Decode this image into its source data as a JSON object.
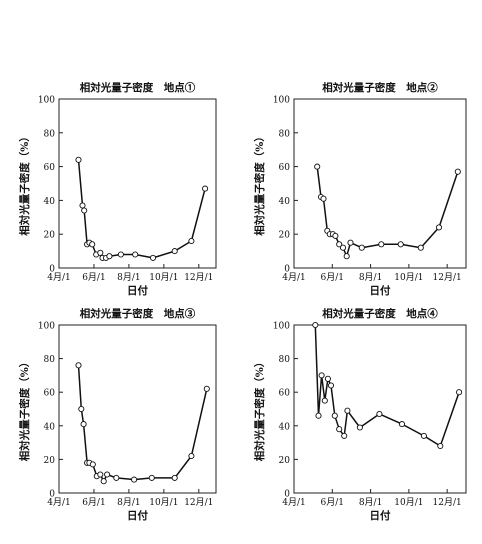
{
  "chart_data": [
    {
      "type": "line",
      "title": "相対光量子密度　地点①",
      "xlabel": "日付",
      "ylabel": "相対光量子密度（%）",
      "ylim": [
        0,
        100
      ],
      "yticks": [
        "0",
        "20",
        "40",
        "60",
        "80",
        "100"
      ],
      "xticks": [
        "4月/1",
        "6月/1",
        "8月/1",
        "10月/1",
        "12月/1"
      ],
      "xlim": [
        "04-01",
        "12-31"
      ],
      "marker": "open-circle",
      "series": [
        {
          "x": [
            "05-05",
            "05-12",
            "05-15",
            "05-20",
            "05-24",
            "05-29",
            "06-05",
            "06-12",
            "06-16",
            "06-22",
            "06-28",
            "07-18",
            "08-12",
            "09-12",
            "10-20",
            "11-18",
            "12-12"
          ],
          "y": [
            64,
            37,
            34,
            14,
            15,
            14,
            8,
            9,
            6,
            6,
            7,
            8,
            8,
            6,
            10,
            16,
            47
          ]
        }
      ]
    },
    {
      "type": "line",
      "title": "相対光量子密度　地点②",
      "xlabel": "日付",
      "ylabel": "相対光量子密度（%）",
      "ylim": [
        0,
        100
      ],
      "yticks": [
        "0",
        "20",
        "40",
        "60",
        "80",
        "100"
      ],
      "xticks": [
        "4月/1",
        "6月/1",
        "8月/1",
        "10月/1",
        "12月/1"
      ],
      "xlim": [
        "04-01",
        "12-31"
      ],
      "marker": "open-circle",
      "series": [
        {
          "x": [
            "05-08",
            "05-14",
            "05-18",
            "05-24",
            "05-28",
            "06-02",
            "06-06",
            "06-12",
            "06-18",
            "06-24",
            "06-30",
            "07-18",
            "08-18",
            "09-18",
            "10-20",
            "11-18",
            "12-18"
          ],
          "y": [
            60,
            42,
            41,
            22,
            20,
            20,
            19,
            14,
            12,
            7,
            15,
            12,
            14,
            14,
            12,
            24,
            57
          ]
        }
      ]
    },
    {
      "type": "line",
      "title": "相対光量子密度　地点③",
      "xlabel": "日付",
      "ylabel": "相対光量子密度（%）",
      "ylim": [
        0,
        100
      ],
      "yticks": [
        "0",
        "20",
        "40",
        "60",
        "80",
        "100"
      ],
      "xticks": [
        "4月/1",
        "6月/1",
        "8月/1",
        "10月/1",
        "12月/1"
      ],
      "xlim": [
        "04-01",
        "12-31"
      ],
      "marker": "open-circle",
      "series": [
        {
          "x": [
            "05-05",
            "05-10",
            "05-14",
            "05-20",
            "05-24",
            "05-30",
            "06-06",
            "06-12",
            "06-18",
            "06-24",
            "07-10",
            "08-10",
            "09-10",
            "10-20",
            "11-18",
            "12-15"
          ],
          "y": [
            76,
            50,
            41,
            18,
            18,
            17,
            10,
            11,
            7,
            11,
            9,
            8,
            9,
            9,
            22,
            62
          ]
        }
      ]
    },
    {
      "type": "line",
      "title": "相対光量子密度　地点④",
      "xlabel": "日付",
      "ylabel": "相対光量子密度（%）",
      "ylim": [
        0,
        100
      ],
      "yticks": [
        "0",
        "20",
        "40",
        "60",
        "80",
        "100"
      ],
      "xticks": [
        "4月/1",
        "6月/1",
        "8月/1",
        "10月/1",
        "12月/1"
      ],
      "xlim": [
        "04-01",
        "12-31"
      ],
      "marker": "open-circle",
      "series": [
        {
          "x": [
            "05-05",
            "05-10",
            "05-15",
            "05-20",
            "05-25",
            "05-30",
            "06-05",
            "06-12",
            "06-20",
            "06-25",
            "07-15",
            "08-15",
            "09-20",
            "10-25",
            "11-20",
            "12-20"
          ],
          "y": [
            100,
            46,
            70,
            55,
            68,
            64,
            46,
            38,
            34,
            49,
            39,
            47,
            41,
            34,
            28,
            60
          ]
        }
      ]
    }
  ]
}
